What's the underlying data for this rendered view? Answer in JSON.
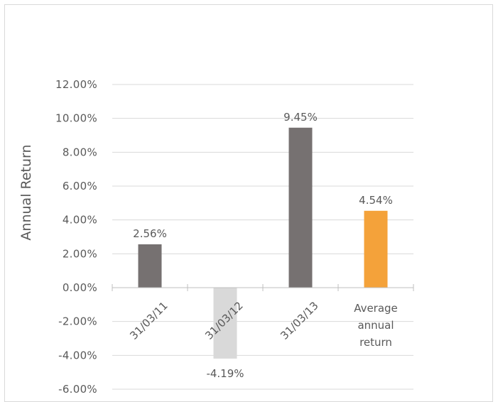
{
  "chart_data": {
    "type": "bar",
    "ylabel": "Annual Return",
    "ylim": [
      -6,
      12
    ],
    "ytick_labels": [
      "-6.00%",
      "-4.00%",
      "-2.00%",
      "0.00%",
      "2.00%",
      "4.00%",
      "6.00%",
      "8.00%",
      "10.00%",
      "12.00%"
    ],
    "categories": [
      "31/03/11",
      "31/03/12",
      "31/03/13",
      "Average annual return"
    ],
    "category_label_lines": [
      [
        "31/03/11"
      ],
      [
        "31/03/12"
      ],
      [
        "31/03/13"
      ],
      [
        "Average",
        "annual",
        "return"
      ]
    ],
    "values": [
      2.56,
      -4.19,
      9.45,
      4.54
    ],
    "data_labels": [
      "2.56%",
      "-4.19%",
      "9.45%",
      "4.54%"
    ],
    "bar_colors": [
      "#767171",
      "#d9d9d9",
      "#767171",
      "#f4a23a"
    ],
    "grid": true
  }
}
